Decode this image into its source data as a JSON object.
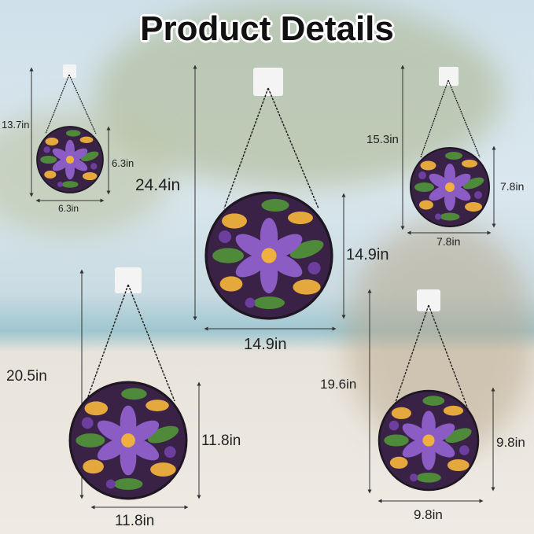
{
  "title": "Product Details",
  "colors": {
    "petal": "#8a5cc4",
    "center": "#f0b040",
    "leaf": "#4e8a3a",
    "frame": "#2a1f2e",
    "line": "#333333"
  },
  "products": [
    {
      "total_height": "13.7in",
      "height": "6.3in",
      "width": "6.3in"
    },
    {
      "total_height": "24.4in",
      "height": "14.9in",
      "width": "14.9in"
    },
    {
      "total_height": "15.3in",
      "height": "7.8in",
      "width": "7.8in"
    },
    {
      "total_height": "20.5in",
      "height": "11.8in",
      "width": "11.8in"
    },
    {
      "total_height": "19.6in",
      "height": "9.8in",
      "width": "9.8in"
    }
  ]
}
